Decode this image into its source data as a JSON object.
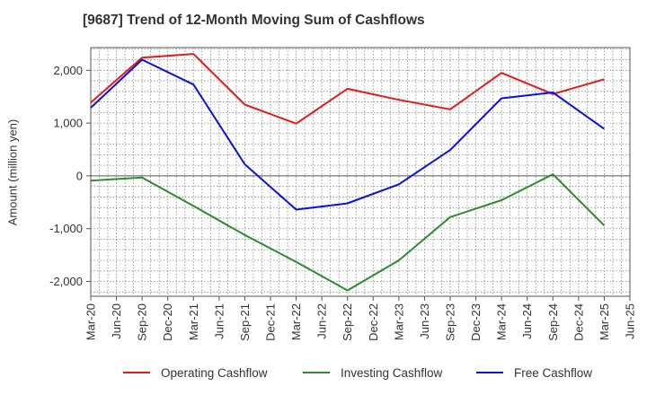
{
  "chart_data": {
    "type": "line",
    "title": "[9687]  Trend of 12-Month Moving Sum of Cashflows",
    "xlabel": "",
    "ylabel": "Amount (million yen)",
    "ylim": [
      -2280,
      2430
    ],
    "yticks": [
      -2000,
      -1000,
      0,
      1000,
      2000
    ],
    "ytick_labels": [
      "-2,000",
      "-1,000",
      "0",
      "1,000",
      "2,000"
    ],
    "categories": [
      "Mar-20",
      "Jun-20",
      "Sep-20",
      "Dec-20",
      "Mar-21",
      "Jun-21",
      "Sep-21",
      "Dec-21",
      "Mar-22",
      "Jun-22",
      "Sep-22",
      "Dec-22",
      "Mar-23",
      "Jun-23",
      "Sep-23",
      "Dec-23",
      "Mar-24",
      "Jun-24",
      "Sep-24",
      "Dec-24",
      "Mar-25",
      "Jun-25"
    ],
    "grid": true,
    "legend_position": "bottom",
    "series": [
      {
        "name": "Operating Cashflow",
        "color": "#e31a1c",
        "values": [
          1390,
          null,
          2240,
          null,
          2310,
          null,
          1350,
          null,
          990,
          null,
          1650,
          null,
          1440,
          null,
          1260,
          null,
          1950,
          null,
          1550,
          null,
          1830,
          null
        ]
      },
      {
        "name": "Investing Cashflow",
        "color": "#2e8b2e",
        "values": [
          -90,
          null,
          -30,
          null,
          -570,
          null,
          -1120,
          null,
          -1630,
          null,
          -2170,
          null,
          -1600,
          null,
          -780,
          null,
          -460,
          null,
          30,
          null,
          -940,
          null
        ]
      },
      {
        "name": "Free Cashflow",
        "color": "#0a14d6",
        "values": [
          1290,
          null,
          2200,
          null,
          1730,
          null,
          220,
          null,
          -640,
          null,
          -520,
          null,
          -160,
          null,
          490,
          null,
          1470,
          null,
          1580,
          null,
          890,
          null
        ]
      }
    ]
  }
}
